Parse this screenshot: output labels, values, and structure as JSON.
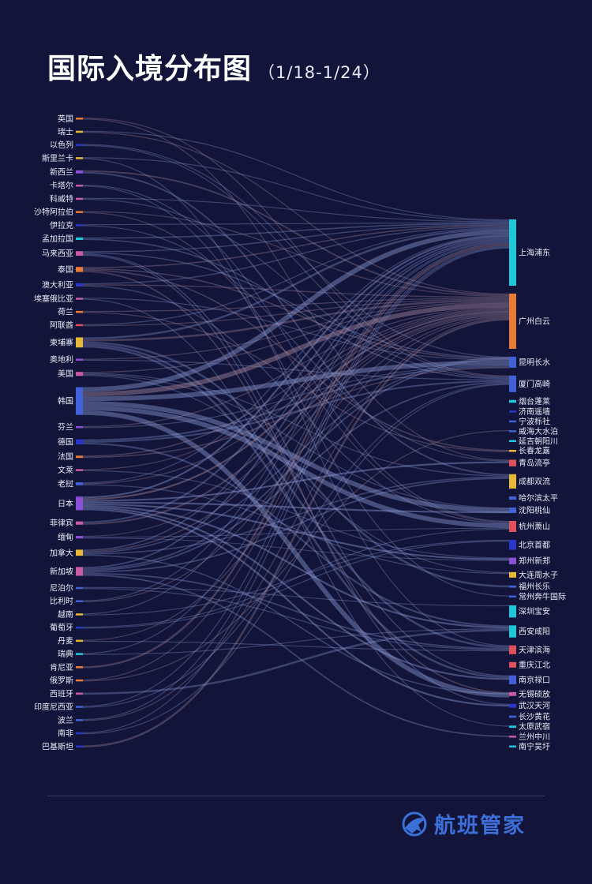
{
  "header": {
    "title": "国际入境分布图",
    "date_range": "（1/18-1/24）"
  },
  "brand": {
    "name": "航班管家",
    "icon": "plane-globe-logo-icon",
    "color": "#3c6fd8"
  },
  "colors": {
    "background": "#121539",
    "link": "#8a97d0"
  },
  "chart_data": {
    "type": "sankey",
    "title": "国际入境分布图",
    "sources": [
      {
        "name": "英国",
        "value": 0.6,
        "color": "#e87b35"
      },
      {
        "name": "瑞士",
        "value": 0.3,
        "color": "#e8b838"
      },
      {
        "name": "以色列",
        "value": 0.3,
        "color": "#2a36c9"
      },
      {
        "name": "斯里兰卡",
        "value": 0.6,
        "color": "#e8b838"
      },
      {
        "name": "新西兰",
        "value": 1.2,
        "color": "#8c4fd8"
      },
      {
        "name": "卡塔尔",
        "value": 0.3,
        "color": "#c85aa6"
      },
      {
        "name": "科威特",
        "value": 0.3,
        "color": "#c85aa6"
      },
      {
        "name": "沙特阿拉伯",
        "value": 0.3,
        "color": "#e87b35"
      },
      {
        "name": "伊拉克",
        "value": 0.3,
        "color": "#2a36c9"
      },
      {
        "name": "孟加拉国",
        "value": 1.0,
        "color": "#1ec8d8"
      },
      {
        "name": "马来西亚",
        "value": 1.8,
        "color": "#c85aa6"
      },
      {
        "name": "泰国",
        "value": 2.0,
        "color": "#e87b35"
      },
      {
        "name": "澳大利亚",
        "value": 1.3,
        "color": "#2a36c9"
      },
      {
        "name": "埃塞俄比亚",
        "value": 0.4,
        "color": "#c85aa6"
      },
      {
        "name": "荷兰",
        "value": 0.8,
        "color": "#e87b35"
      },
      {
        "name": "阿联酋",
        "value": 0.7,
        "color": "#e0505a"
      },
      {
        "name": "柬埔寨",
        "value": 4.0,
        "color": "#e8b838"
      },
      {
        "name": "奥地利",
        "value": 0.4,
        "color": "#8c4fd8"
      },
      {
        "name": "美国",
        "value": 1.6,
        "color": "#c85aa6"
      },
      {
        "name": "韩国",
        "value": 11.0,
        "color": "#4260d8"
      },
      {
        "name": "芬兰",
        "value": 0.5,
        "color": "#8c4fd8"
      },
      {
        "name": "德国",
        "value": 2.0,
        "color": "#2a36c9"
      },
      {
        "name": "法国",
        "value": 0.9,
        "color": "#e87b35"
      },
      {
        "name": "文莱",
        "value": 0.3,
        "color": "#c85aa6"
      },
      {
        "name": "老挝",
        "value": 1.2,
        "color": "#4260d8"
      },
      {
        "name": "日本",
        "value": 5.4,
        "color": "#8c4fd8"
      },
      {
        "name": "菲律宾",
        "value": 1.3,
        "color": "#c85aa6"
      },
      {
        "name": "缅甸",
        "value": 1.0,
        "color": "#8c4fd8"
      },
      {
        "name": "加拿大",
        "value": 2.4,
        "color": "#e8b838"
      },
      {
        "name": "新加坡",
        "value": 3.5,
        "color": "#c85aa6"
      },
      {
        "name": "尼泊尔",
        "value": 0.5,
        "color": "#4260d8"
      },
      {
        "name": "比利时",
        "value": 0.3,
        "color": "#4260d8"
      },
      {
        "name": "越南",
        "value": 0.5,
        "color": "#e8b838"
      },
      {
        "name": "葡萄牙",
        "value": 0.3,
        "color": "#2a36c9"
      },
      {
        "name": "丹麦",
        "value": 0.7,
        "color": "#e8b838"
      },
      {
        "name": "瑞典",
        "value": 0.5,
        "color": "#1ec8d8"
      },
      {
        "name": "肯尼亚",
        "value": 0.8,
        "color": "#e87b35"
      },
      {
        "name": "俄罗斯",
        "value": 0.7,
        "color": "#e87b35"
      },
      {
        "name": "西班牙",
        "value": 0.3,
        "color": "#c85aa6"
      },
      {
        "name": "印度尼西亚",
        "value": 0.8,
        "color": "#4260d8"
      },
      {
        "name": "波兰",
        "value": 0.4,
        "color": "#4260d8"
      },
      {
        "name": "南非",
        "value": 0.3,
        "color": "#2a36c9"
      },
      {
        "name": "巴基斯坦",
        "value": 0.3,
        "color": "#2a36c9"
      }
    ],
    "targets": [
      {
        "name": "上海浦东",
        "value": 12.0,
        "color": "#1ec8d8"
      },
      {
        "name": "广州白云",
        "value": 10.0,
        "color": "#e87b35"
      },
      {
        "name": "昆明长水",
        "value": 2.0,
        "color": "#4260d8"
      },
      {
        "name": "厦门高崎",
        "value": 3.0,
        "color": "#4260d8"
      },
      {
        "name": "烟台蓬莱",
        "value": 0.5,
        "color": "#1ec8d8"
      },
      {
        "name": "济南遥墙",
        "value": 0.3,
        "color": "#2a36c9"
      },
      {
        "name": "宁波栎社",
        "value": 0.3,
        "color": "#4260d8"
      },
      {
        "name": "威海大水泊",
        "value": 0.3,
        "color": "#4260d8"
      },
      {
        "name": "延吉朝阳川",
        "value": 0.3,
        "color": "#1ec8d8"
      },
      {
        "name": "长春龙嘉",
        "value": 0.3,
        "color": "#e8b838"
      },
      {
        "name": "青岛流亭",
        "value": 1.2,
        "color": "#e0505a"
      },
      {
        "name": "成都双流",
        "value": 2.6,
        "color": "#e8b838"
      },
      {
        "name": "哈尔滨太平",
        "value": 0.6,
        "color": "#4260d8"
      },
      {
        "name": "沈阳桃仙",
        "value": 1.0,
        "color": "#4260d8"
      },
      {
        "name": "杭州萧山",
        "value": 2.0,
        "color": "#e0505a"
      },
      {
        "name": "北京首都",
        "value": 1.8,
        "color": "#2a36c9"
      },
      {
        "name": "郑州新郑",
        "value": 1.2,
        "color": "#8c4fd8"
      },
      {
        "name": "大连周水子",
        "value": 1.0,
        "color": "#e8b838"
      },
      {
        "name": "福州长乐",
        "value": 0.4,
        "color": "#4260d8"
      },
      {
        "name": "常州奔牛国际",
        "value": 0.3,
        "color": "#4260d8"
      },
      {
        "name": "深圳宝安",
        "value": 2.2,
        "color": "#1ec8d8"
      },
      {
        "name": "西安咸阳",
        "value": 2.2,
        "color": "#1ec8d8"
      },
      {
        "name": "天津滨海",
        "value": 1.6,
        "color": "#e0505a"
      },
      {
        "name": "重庆江北",
        "value": 1.0,
        "color": "#e0505a"
      },
      {
        "name": "南京禄口",
        "value": 1.6,
        "color": "#4260d8"
      },
      {
        "name": "无锡硕放",
        "value": 0.7,
        "color": "#c85aa6"
      },
      {
        "name": "武汉天河",
        "value": 0.7,
        "color": "#2a36c9"
      },
      {
        "name": "长沙黄花",
        "value": 0.4,
        "color": "#4260d8"
      },
      {
        "name": "太原武宿",
        "value": 0.4,
        "color": "#1ec8d8"
      },
      {
        "name": "兰州中川",
        "value": 0.3,
        "color": "#c85aa6"
      },
      {
        "name": "南宁吴圩",
        "value": 0.3,
        "color": "#1ec8d8"
      }
    ]
  }
}
